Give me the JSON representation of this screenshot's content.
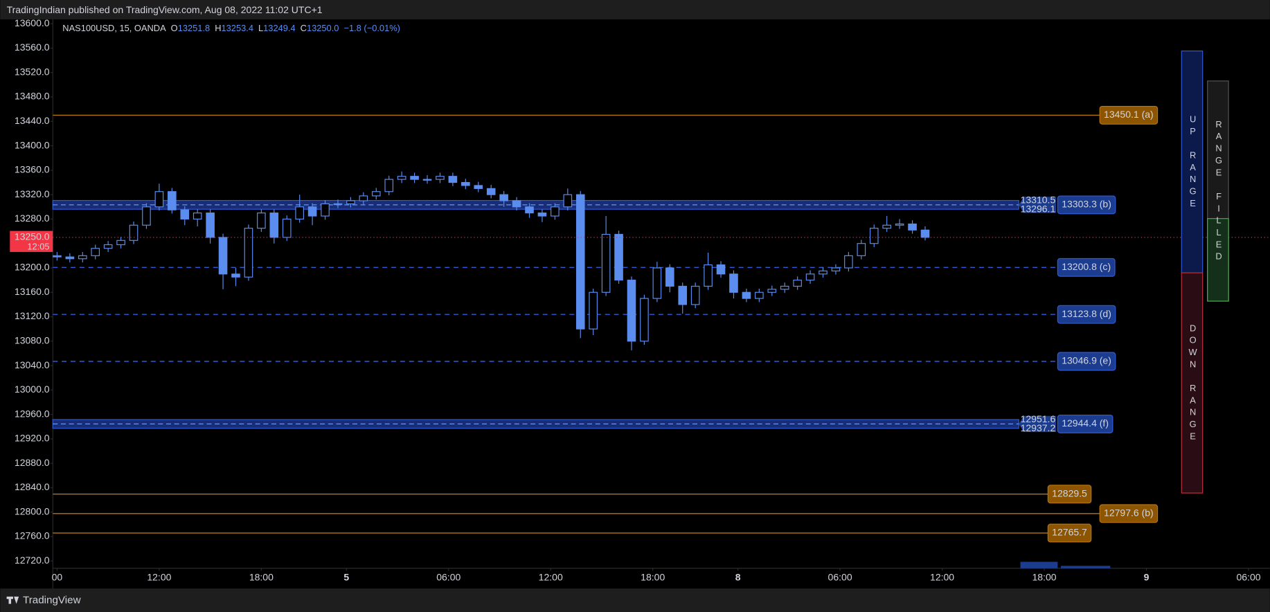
{
  "header": "TradingIndian published on TradingView.com, Aug 08, 2022 11:02 UTC+1",
  "footer": "TradingView",
  "chart_data": {
    "type": "candlestick",
    "legend": {
      "symbol": "NAS100USD, 15, OANDA",
      "o_label": "O",
      "open": "13251.8",
      "h_label": "H",
      "high": "13253.4",
      "l_label": "L",
      "low": "13249.4",
      "c_label": "C",
      "close": "13250.0",
      "change": "−1.8 (−0.01%)"
    },
    "x": [
      0,
      3,
      6,
      9,
      12,
      15,
      18,
      21,
      24,
      27,
      30,
      33,
      36,
      39,
      42,
      45,
      48,
      51,
      54,
      57,
      60,
      63,
      66,
      69,
      72,
      75,
      78,
      81,
      84,
      87,
      90,
      93,
      96,
      99,
      102,
      105,
      108,
      111,
      114,
      117,
      120,
      123,
      126,
      129,
      132,
      135,
      138,
      141,
      144,
      147,
      150,
      153,
      156,
      159,
      162,
      165,
      168,
      171,
      174,
      177,
      180,
      183,
      186,
      189,
      192,
      195,
      198,
      201,
      204
    ],
    "open": [
      13220,
      13218,
      13215,
      13220,
      13232,
      13238,
      13245,
      13270,
      13300,
      13325,
      13295,
      13280,
      13290,
      13250,
      13190,
      13185,
      13265,
      13290,
      13250,
      13280,
      13300,
      13285,
      13305,
      13305,
      13310,
      13318,
      13325,
      13345,
      13350,
      13345,
      13345,
      13350,
      13340,
      13335,
      13330,
      13320,
      13310,
      13300,
      13290,
      13285,
      13300,
      13320,
      13100,
      13160,
      13255,
      13180,
      13080,
      13150,
      13200,
      13170,
      13140,
      13170,
      13205,
      13190,
      13160,
      13150,
      13160,
      13165,
      13170,
      13180,
      13190,
      13195,
      13200,
      13220,
      13240,
      13265,
      13270,
      13272,
      13262
    ],
    "high": [
      13226,
      13224,
      13226,
      13238,
      13244,
      13251,
      13276,
      13306,
      13338,
      13331,
      13301,
      13296,
      13296,
      13256,
      13200,
      13271,
      13296,
      13296,
      13286,
      13320,
      13306,
      13311,
      13312,
      13316,
      13324,
      13331,
      13351,
      13358,
      13356,
      13352,
      13356,
      13356,
      13346,
      13341,
      13336,
      13326,
      13316,
      13306,
      13296,
      13306,
      13330,
      13326,
      13166,
      13285,
      13261,
      13186,
      13156,
      13210,
      13206,
      13176,
      13176,
      13225,
      13211,
      13196,
      13166,
      13166,
      13171,
      13176,
      13186,
      13196,
      13201,
      13206,
      13226,
      13246,
      13271,
      13285,
      13280,
      13278,
      13268
    ],
    "low": [
      13212,
      13209,
      13209,
      13214,
      13226,
      13232,
      13239,
      13264,
      13294,
      13289,
      13270,
      13268,
      13240,
      13165,
      13170,
      13179,
      13259,
      13240,
      13244,
      13274,
      13270,
      13279,
      13298,
      13299,
      13304,
      13312,
      13319,
      13339,
      13339,
      13338,
      13339,
      13334,
      13329,
      13324,
      13314,
      13300,
      13294,
      13282,
      13275,
      13279,
      13294,
      13085,
      13090,
      13154,
      13174,
      13065,
      13074,
      13144,
      13160,
      13125,
      13134,
      13164,
      13184,
      13150,
      13144,
      13144,
      13154,
      13159,
      13164,
      13174,
      13184,
      13189,
      13194,
      13214,
      13234,
      13259,
      13264,
      13256,
      13245
    ],
    "close": [
      13218,
      13215,
      13220,
      13232,
      13238,
      13245,
      13270,
      13300,
      13325,
      13295,
      13280,
      13290,
      13250,
      13190,
      13185,
      13265,
      13290,
      13250,
      13280,
      13300,
      13285,
      13305,
      13305,
      13310,
      13318,
      13325,
      13345,
      13350,
      13345,
      13345,
      13350,
      13340,
      13335,
      13330,
      13320,
      13310,
      13300,
      13290,
      13285,
      13300,
      13320,
      13100,
      13160,
      13255,
      13180,
      13080,
      13150,
      13200,
      13170,
      13140,
      13170,
      13205,
      13190,
      13160,
      13150,
      13160,
      13165,
      13170,
      13180,
      13190,
      13195,
      13200,
      13220,
      13240,
      13265,
      13270,
      13272,
      13262,
      13250
    ],
    "color": "#5b8def",
    "xlim": [
      -1,
      285
    ],
    "xticks": [
      {
        "value": 0,
        "label": "00"
      },
      {
        "value": 24,
        "label": "12:00"
      },
      {
        "value": 48,
        "label": "18:00"
      },
      {
        "value": 68,
        "label": "5"
      },
      {
        "value": 92,
        "label": "06:00"
      },
      {
        "value": 116,
        "label": "12:00"
      },
      {
        "value": 140,
        "label": "18:00"
      },
      {
        "value": 160,
        "label": "8"
      },
      {
        "value": 184,
        "label": "06:00"
      },
      {
        "value": 208,
        "label": "12:00"
      },
      {
        "value": 232,
        "label": "18:00"
      },
      {
        "value": 256,
        "label": "9"
      },
      {
        "value": 280,
        "label": "06:00"
      }
    ],
    "ylim": [
      12708,
      13607
    ],
    "yticks": [
      {
        "value": 12720,
        "label": "12720.0"
      },
      {
        "value": 12760,
        "label": "12760.0"
      },
      {
        "value": 12800,
        "label": "12800.0"
      },
      {
        "value": 12840,
        "label": "12840.0"
      },
      {
        "value": 12880,
        "label": "12880.0"
      },
      {
        "value": 12920,
        "label": "12920.0"
      },
      {
        "value": 12960,
        "label": "12960.0"
      },
      {
        "value": 13000,
        "label": "13000.0"
      },
      {
        "value": 13040,
        "label": "13040.0"
      },
      {
        "value": 13080,
        "label": "13080.0"
      },
      {
        "value": 13120,
        "label": "13120.0"
      },
      {
        "value": 13160,
        "label": "13160.0"
      },
      {
        "value": 13200,
        "label": "13200.0"
      },
      {
        "value": 13240,
        "label": "13240.0"
      },
      {
        "value": 13280,
        "label": "13280.0"
      },
      {
        "value": 13320,
        "label": "13320.0"
      },
      {
        "value": 13360,
        "label": "13360.0"
      },
      {
        "value": 13400,
        "label": "13400.0"
      },
      {
        "value": 13440,
        "label": "13440.0"
      },
      {
        "value": 13480,
        "label": "13480.0"
      },
      {
        "value": 13520,
        "label": "13520.0"
      },
      {
        "value": 13560,
        "label": "13560.0"
      },
      {
        "value": 13600,
        "label": "13600.0"
      }
    ],
    "last_price": {
      "value": 13250.0,
      "label": "13250.0"
    },
    "countdown": "12:05",
    "levels": [
      {
        "value": 13450.1,
        "label": "13450.1 (a)",
        "style": "solid",
        "color": "#b8740f"
      },
      {
        "value": 13200.8,
        "label": "13200.8 (c)",
        "style": "dashed",
        "color": "#2f5bd6"
      },
      {
        "value": 13123.8,
        "label": "13123.8 (d)",
        "style": "dashed",
        "color": "#2f5bd6"
      },
      {
        "value": 13046.9,
        "label": "13046.9 (e)",
        "style": "dashed",
        "color": "#2f5bd6"
      },
      {
        "value": 12829.5,
        "label": "12829.5",
        "style": "solid",
        "color": "#b8740f"
      },
      {
        "value": 12797.6,
        "label": "12797.6 (b)",
        "style": "solid",
        "color": "#b8740f"
      },
      {
        "value": 12765.7,
        "label": "12765.7",
        "style": "solid",
        "color": "#b8740f"
      }
    ],
    "zones": [
      {
        "top": 13310.5,
        "bottom": 13296.1,
        "mid": 13303.3,
        "top_label": "13310.5",
        "bottom_label": "13296.1",
        "mid_label": "13303.3 (b)"
      },
      {
        "top": 12951.6,
        "bottom": 12937.2,
        "mid": 12944.4,
        "top_label": "12951.6",
        "bottom_label": "12937.2",
        "mid_label": "12944.4 (f)"
      }
    ],
    "range_boxes": [
      {
        "label": "UP RANGE"
      },
      {
        "label": "DOWN RANGE"
      },
      {
        "label": "RANGE FILLED"
      }
    ]
  }
}
